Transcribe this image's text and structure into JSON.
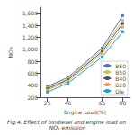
{
  "chart_data": {
    "type": "line",
    "xlabel": "Engine Load(%)",
    "ylabel": "NOx",
    "caption": "Fig.4. Effect of biodiesel and engine load on NOₓ emission",
    "x": [
      25,
      40,
      65,
      80
    ],
    "series": [
      {
        "name": "B60",
        "values": [
          380,
          530,
          1020,
          1560
        ]
      },
      {
        "name": "B50",
        "values": [
          360,
          510,
          990,
          1480
        ]
      },
      {
        "name": "B40",
        "values": [
          340,
          490,
          960,
          1430
        ]
      },
      {
        "name": "B20",
        "values": [
          320,
          465,
          925,
          1370
        ]
      },
      {
        "name": "Die",
        "values": [
          285,
          435,
          870,
          1290
        ]
      }
    ],
    "xlim": [
      20,
      85
    ],
    "ylim": [
      200,
      1700
    ],
    "xticks": [
      25,
      40,
      65,
      80
    ],
    "yticks": [
      200,
      400,
      600,
      800,
      1000,
      1200,
      1400,
      1600
    ],
    "marker": "square",
    "legend": "lower right",
    "grid": false
  }
}
